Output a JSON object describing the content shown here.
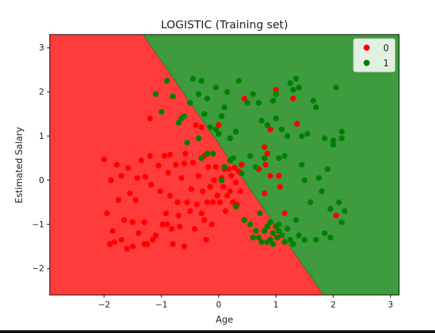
{
  "chart_data": {
    "type": "scatter",
    "title": "LOGISTIC (Training set)",
    "xlabel": "Age",
    "ylabel": "Estimated Salary",
    "xlim": [
      -2.95,
      3.15
    ],
    "ylim": [
      -2.6,
      3.3
    ],
    "xticks": [
      -2,
      -1,
      0,
      1,
      2,
      3
    ],
    "yticks": [
      -2,
      -1,
      0,
      1,
      2,
      3
    ],
    "xtick_labels": [
      "−2",
      "−1",
      "0",
      "1",
      "2",
      "3"
    ],
    "ytick_labels": [
      "−2",
      "−1",
      "0",
      "1",
      "2",
      "3"
    ],
    "decision_boundary": [
      [
        -1.32,
        3.3
      ],
      [
        1.83,
        -2.6
      ]
    ],
    "region_colors": {
      "0": "#ff3b3b",
      "1": "#3e9b3e"
    },
    "legend": {
      "position": "top-right",
      "entries": [
        "0",
        "1"
      ]
    },
    "grid": false,
    "series": [
      {
        "name": "0",
        "color": "#ff0000",
        "points": [
          [
            -2.0,
            0.47
          ],
          [
            -1.95,
            -0.75
          ],
          [
            -1.88,
            0.0
          ],
          [
            -1.85,
            -1.15
          ],
          [
            -1.82,
            -1.4
          ],
          [
            -1.78,
            0.35
          ],
          [
            -1.75,
            -0.45
          ],
          [
            -1.7,
            0.1
          ],
          [
            -1.65,
            -0.9
          ],
          [
            -1.6,
            -1.55
          ],
          [
            -1.58,
            0.28
          ],
          [
            -1.55,
            -0.3
          ],
          [
            -1.5,
            -0.95
          ],
          [
            -1.45,
            -0.45
          ],
          [
            -1.42,
            0.05
          ],
          [
            -1.4,
            -1.2
          ],
          [
            -1.35,
            0.45
          ],
          [
            -1.3,
            -0.95
          ],
          [
            -1.28,
            0.08
          ],
          [
            -1.25,
            -1.45
          ],
          [
            -1.2,
            0.55
          ],
          [
            -1.18,
            -0.1
          ],
          [
            -1.15,
            -1.35
          ],
          [
            -1.1,
            -1.25
          ],
          [
            -1.05,
            0.33
          ],
          [
            -1.02,
            -0.25
          ],
          [
            -0.98,
            -1.0
          ],
          [
            -0.95,
            0.55
          ],
          [
            -0.92,
            -0.75
          ],
          [
            -0.9,
            -1.0
          ],
          [
            -0.88,
            0.17
          ],
          [
            -0.85,
            -0.35
          ],
          [
            -0.82,
            -1.1
          ],
          [
            -0.8,
            -1.45
          ],
          [
            -0.75,
            0.35
          ],
          [
            -0.72,
            -0.5
          ],
          [
            -0.7,
            -0.8
          ],
          [
            -0.68,
            -1.05
          ],
          [
            -0.65,
            0.05
          ],
          [
            -0.6,
            -1.5
          ],
          [
            -0.58,
            0.6
          ],
          [
            -0.55,
            -0.5
          ],
          [
            -0.5,
            -0.7
          ],
          [
            -0.48,
            -0.2
          ],
          [
            -0.45,
            0.4
          ],
          [
            -0.42,
            -1.1
          ],
          [
            -0.4,
            1.25
          ],
          [
            -0.38,
            -0.55
          ],
          [
            -0.35,
            0.1
          ],
          [
            -0.3,
            -0.75
          ],
          [
            -0.28,
            -0.25
          ],
          [
            -0.25,
            0.55
          ],
          [
            -0.22,
            -1.35
          ],
          [
            -0.2,
            -0.5
          ],
          [
            -0.18,
            0.3
          ],
          [
            -0.15,
            -0.15
          ],
          [
            -0.12,
            -1.0
          ],
          [
            -0.1,
            -0.5
          ],
          [
            -0.08,
            0.0
          ],
          [
            -0.05,
            0.3
          ],
          [
            -0.02,
            -0.35
          ],
          [
            0.0,
            1.25
          ],
          [
            0.02,
            -0.5
          ],
          [
            0.05,
            0.05
          ],
          [
            0.08,
            -0.15
          ],
          [
            0.1,
            0.25
          ],
          [
            0.12,
            -0.7
          ],
          [
            0.15,
            -0.35
          ],
          [
            0.18,
            0.25
          ],
          [
            0.2,
            -0.25
          ],
          [
            0.22,
            0.1
          ],
          [
            0.25,
            -0.5
          ],
          [
            0.28,
            0.28
          ],
          [
            0.3,
            -0.05
          ],
          [
            0.32,
            -0.55
          ],
          [
            0.35,
            0.2
          ],
          [
            0.38,
            -0.25
          ],
          [
            0.4,
            0.35
          ],
          [
            -1.5,
            -1.5
          ],
          [
            -1.7,
            -1.35
          ],
          [
            -1.3,
            -1.45
          ],
          [
            -1.9,
            -1.45
          ],
          [
            -1.2,
            1.4
          ],
          [
            -0.85,
            0.58
          ],
          [
            -0.6,
            0.38
          ],
          [
            -0.3,
            1.2
          ],
          [
            0.45,
            1.85
          ],
          [
            0.7,
            0.25
          ],
          [
            0.8,
            0.75
          ],
          [
            0.8,
            -0.3
          ],
          [
            0.82,
            0.35
          ],
          [
            0.85,
            0.6
          ],
          [
            0.9,
            1.15
          ],
          [
            0.9,
            0.1
          ],
          [
            1.0,
            2.05
          ],
          [
            1.05,
            0.1
          ],
          [
            1.07,
            -0.15
          ],
          [
            1.15,
            -0.75
          ],
          [
            1.3,
            1.85
          ],
          [
            1.37,
            1.28
          ],
          [
            2.05,
            -0.8
          ],
          [
            -0.25,
            -0.9
          ]
        ]
      },
      {
        "name": "1",
        "color": "#008000",
        "points": [
          [
            -1.1,
            1.95
          ],
          [
            -1.0,
            1.55
          ],
          [
            -0.9,
            2.25
          ],
          [
            -0.8,
            1.9
          ],
          [
            -0.7,
            1.3
          ],
          [
            -0.65,
            1.4
          ],
          [
            -0.6,
            1.45
          ],
          [
            -0.55,
            0.85
          ],
          [
            -0.5,
            1.75
          ],
          [
            -0.45,
            2.3
          ],
          [
            -0.35,
            1.95
          ],
          [
            -0.3,
            2.25
          ],
          [
            -0.2,
            1.85
          ],
          [
            -0.15,
            1.2
          ],
          [
            -0.1,
            0.6
          ],
          [
            -0.05,
            2.1
          ],
          [
            0.0,
            1.05
          ],
          [
            0.05,
            1.45
          ],
          [
            0.1,
            1.65
          ],
          [
            0.15,
            2.0
          ],
          [
            0.2,
            0.95
          ],
          [
            0.25,
            0.5
          ],
          [
            0.3,
            1.1
          ],
          [
            0.35,
            2.25
          ],
          [
            0.4,
            0.15
          ],
          [
            0.5,
            1.75
          ],
          [
            0.55,
            0.55
          ],
          [
            0.6,
            1.95
          ],
          [
            0.65,
            0.3
          ],
          [
            0.7,
            1.75
          ],
          [
            0.72,
            -0.75
          ],
          [
            0.75,
            1.35
          ],
          [
            0.8,
            0.5
          ],
          [
            0.85,
            1.25
          ],
          [
            0.9,
            -1.35
          ],
          [
            0.95,
            1.8
          ],
          [
            1.0,
            1.95
          ],
          [
            1.0,
            1.4
          ],
          [
            1.05,
            0.5
          ],
          [
            1.1,
            1.15
          ],
          [
            1.15,
            0.55
          ],
          [
            1.2,
            1.0
          ],
          [
            1.25,
            2.2
          ],
          [
            1.3,
            2.05
          ],
          [
            1.35,
            2.3
          ],
          [
            1.4,
            2.1
          ],
          [
            1.45,
            1.0
          ],
          [
            1.45,
            0.35
          ],
          [
            1.5,
            0.0
          ],
          [
            1.55,
            1.05
          ],
          [
            1.6,
            -0.5
          ],
          [
            1.65,
            1.8
          ],
          [
            1.7,
            1.65
          ],
          [
            1.75,
            0.05
          ],
          [
            1.8,
            -0.25
          ],
          [
            1.85,
            0.95
          ],
          [
            1.9,
            0.25
          ],
          [
            1.95,
            -0.65
          ],
          [
            2.0,
            0.8
          ],
          [
            2.0,
            0.9
          ],
          [
            2.05,
            2.1
          ],
          [
            2.1,
            -0.5
          ],
          [
            2.15,
            1.1
          ],
          [
            2.15,
            0.95
          ],
          [
            2.15,
            -0.95
          ],
          [
            2.2,
            -0.7
          ],
          [
            0.8,
            -1.15
          ],
          [
            0.85,
            -1.05
          ],
          [
            0.9,
            -0.95
          ],
          [
            0.95,
            -1.2
          ],
          [
            1.0,
            -1.05
          ],
          [
            1.02,
            -1.3
          ],
          [
            1.05,
            -1.0
          ],
          [
            1.1,
            -1.25
          ],
          [
            1.15,
            -1.4
          ],
          [
            1.2,
            -1.1
          ],
          [
            1.25,
            -1.35
          ],
          [
            1.3,
            -1.45
          ],
          [
            1.35,
            -0.9
          ],
          [
            1.4,
            -1.25
          ],
          [
            1.5,
            -1.35
          ],
          [
            1.7,
            -1.35
          ],
          [
            1.85,
            -1.2
          ],
          [
            1.95,
            -1.3
          ],
          [
            0.75,
            -1.4
          ],
          [
            0.7,
            -1.3
          ],
          [
            0.65,
            -1.15
          ],
          [
            0.85,
            -1.4
          ],
          [
            0.95,
            -1.45
          ],
          [
            1.05,
            -1.15
          ],
          [
            0.55,
            -1.0
          ],
          [
            0.6,
            -1.3
          ],
          [
            0.45,
            -0.9
          ],
          [
            0.3,
            -0.6
          ],
          [
            0.2,
            0.45
          ],
          [
            0.1,
            0.3
          ],
          [
            -0.2,
            0.6
          ],
          [
            -0.3,
            0.5
          ],
          [
            -0.35,
            0.95
          ],
          [
            -0.25,
            1.5
          ],
          [
            -0.05,
            1.15
          ],
          [
            0.05,
            0.0
          ]
        ]
      }
    ]
  }
}
